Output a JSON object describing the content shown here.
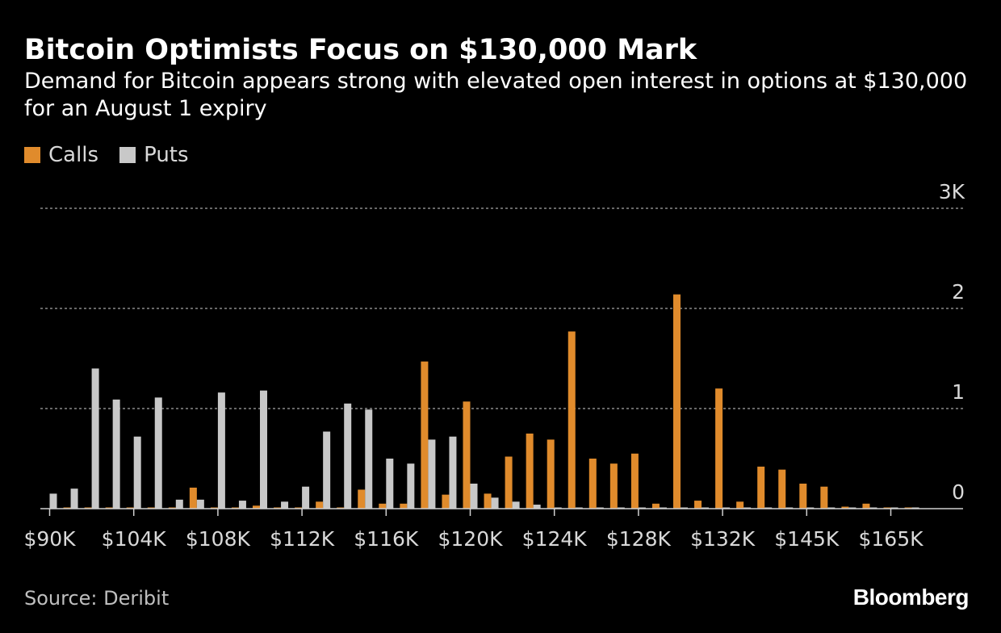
{
  "header": {
    "title": "Bitcoin Optimists Focus on $130,000 Mark",
    "subtitle": "Demand for Bitcoin appears strong with elevated open interest in options at $130,000 for an August 1 expiry"
  },
  "legend": {
    "calls_label": "Calls",
    "puts_label": "Puts"
  },
  "colors": {
    "calls": "#e08b2c",
    "puts": "#c8c8c8",
    "background": "#000000",
    "grid": "#8a8a8a"
  },
  "footer": {
    "source": "Source: Deribit",
    "brand": "Bloomberg"
  },
  "chart_data": {
    "type": "bar",
    "title": "Bitcoin Optimists Focus on $130,000 Mark",
    "ylabel": "",
    "xlabel": "",
    "ylim": [
      0,
      3
    ],
    "y_ticks": [
      0,
      1,
      2,
      3
    ],
    "y_tick_labels": [
      "0",
      "1",
      "2",
      "3K"
    ],
    "grid": true,
    "legend_position": "top-left",
    "categories": [
      "$90K",
      "",
      "",
      "",
      "$104K",
      "",
      "",
      "",
      "$108K",
      "",
      "",
      "",
      "$112K",
      "",
      "",
      "",
      "$116K",
      "",
      "",
      "",
      "$120K",
      "",
      "",
      "",
      "$124K",
      "",
      "",
      "",
      "$128K",
      "",
      "",
      "",
      "$132K",
      "",
      "",
      "",
      "$145K",
      "",
      "",
      "",
      "$165K",
      "",
      ""
    ],
    "x_tick_labels": [
      "$90K",
      "$104K",
      "$108K",
      "$112K",
      "$116K",
      "$120K",
      "$124K",
      "$128K",
      "$132K",
      "$145K",
      "$165K"
    ],
    "series": [
      {
        "name": "Calls",
        "values": [
          0.0,
          0.01,
          0.01,
          0.01,
          0.01,
          0.01,
          0.01,
          0.21,
          0.01,
          0.01,
          0.03,
          0.01,
          0.01,
          0.07,
          0.01,
          0.19,
          0.05,
          0.05,
          1.47,
          0.14,
          1.07,
          0.15,
          0.52,
          0.75,
          0.69,
          1.77,
          0.5,
          0.45,
          0.55,
          0.05,
          2.14,
          0.08,
          1.2,
          0.07,
          0.42,
          0.39,
          0.25,
          0.22,
          0.02,
          0.05,
          0.01,
          0.01,
          0.0
        ]
      },
      {
        "name": "Puts",
        "values": [
          0.15,
          0.2,
          1.4,
          1.09,
          0.72,
          1.11,
          0.09,
          0.09,
          1.16,
          0.08,
          1.18,
          0.07,
          0.22,
          0.77,
          1.05,
          0.99,
          0.5,
          0.45,
          0.69,
          0.72,
          0.25,
          0.11,
          0.07,
          0.04,
          0.01,
          0.01,
          0.01,
          0.01,
          0.01,
          0.01,
          0.01,
          0.01,
          0.01,
          0.01,
          0.01,
          0.01,
          0.01,
          0.01,
          0.01,
          0.01,
          0.01,
          0.01,
          0.0
        ]
      }
    ]
  }
}
